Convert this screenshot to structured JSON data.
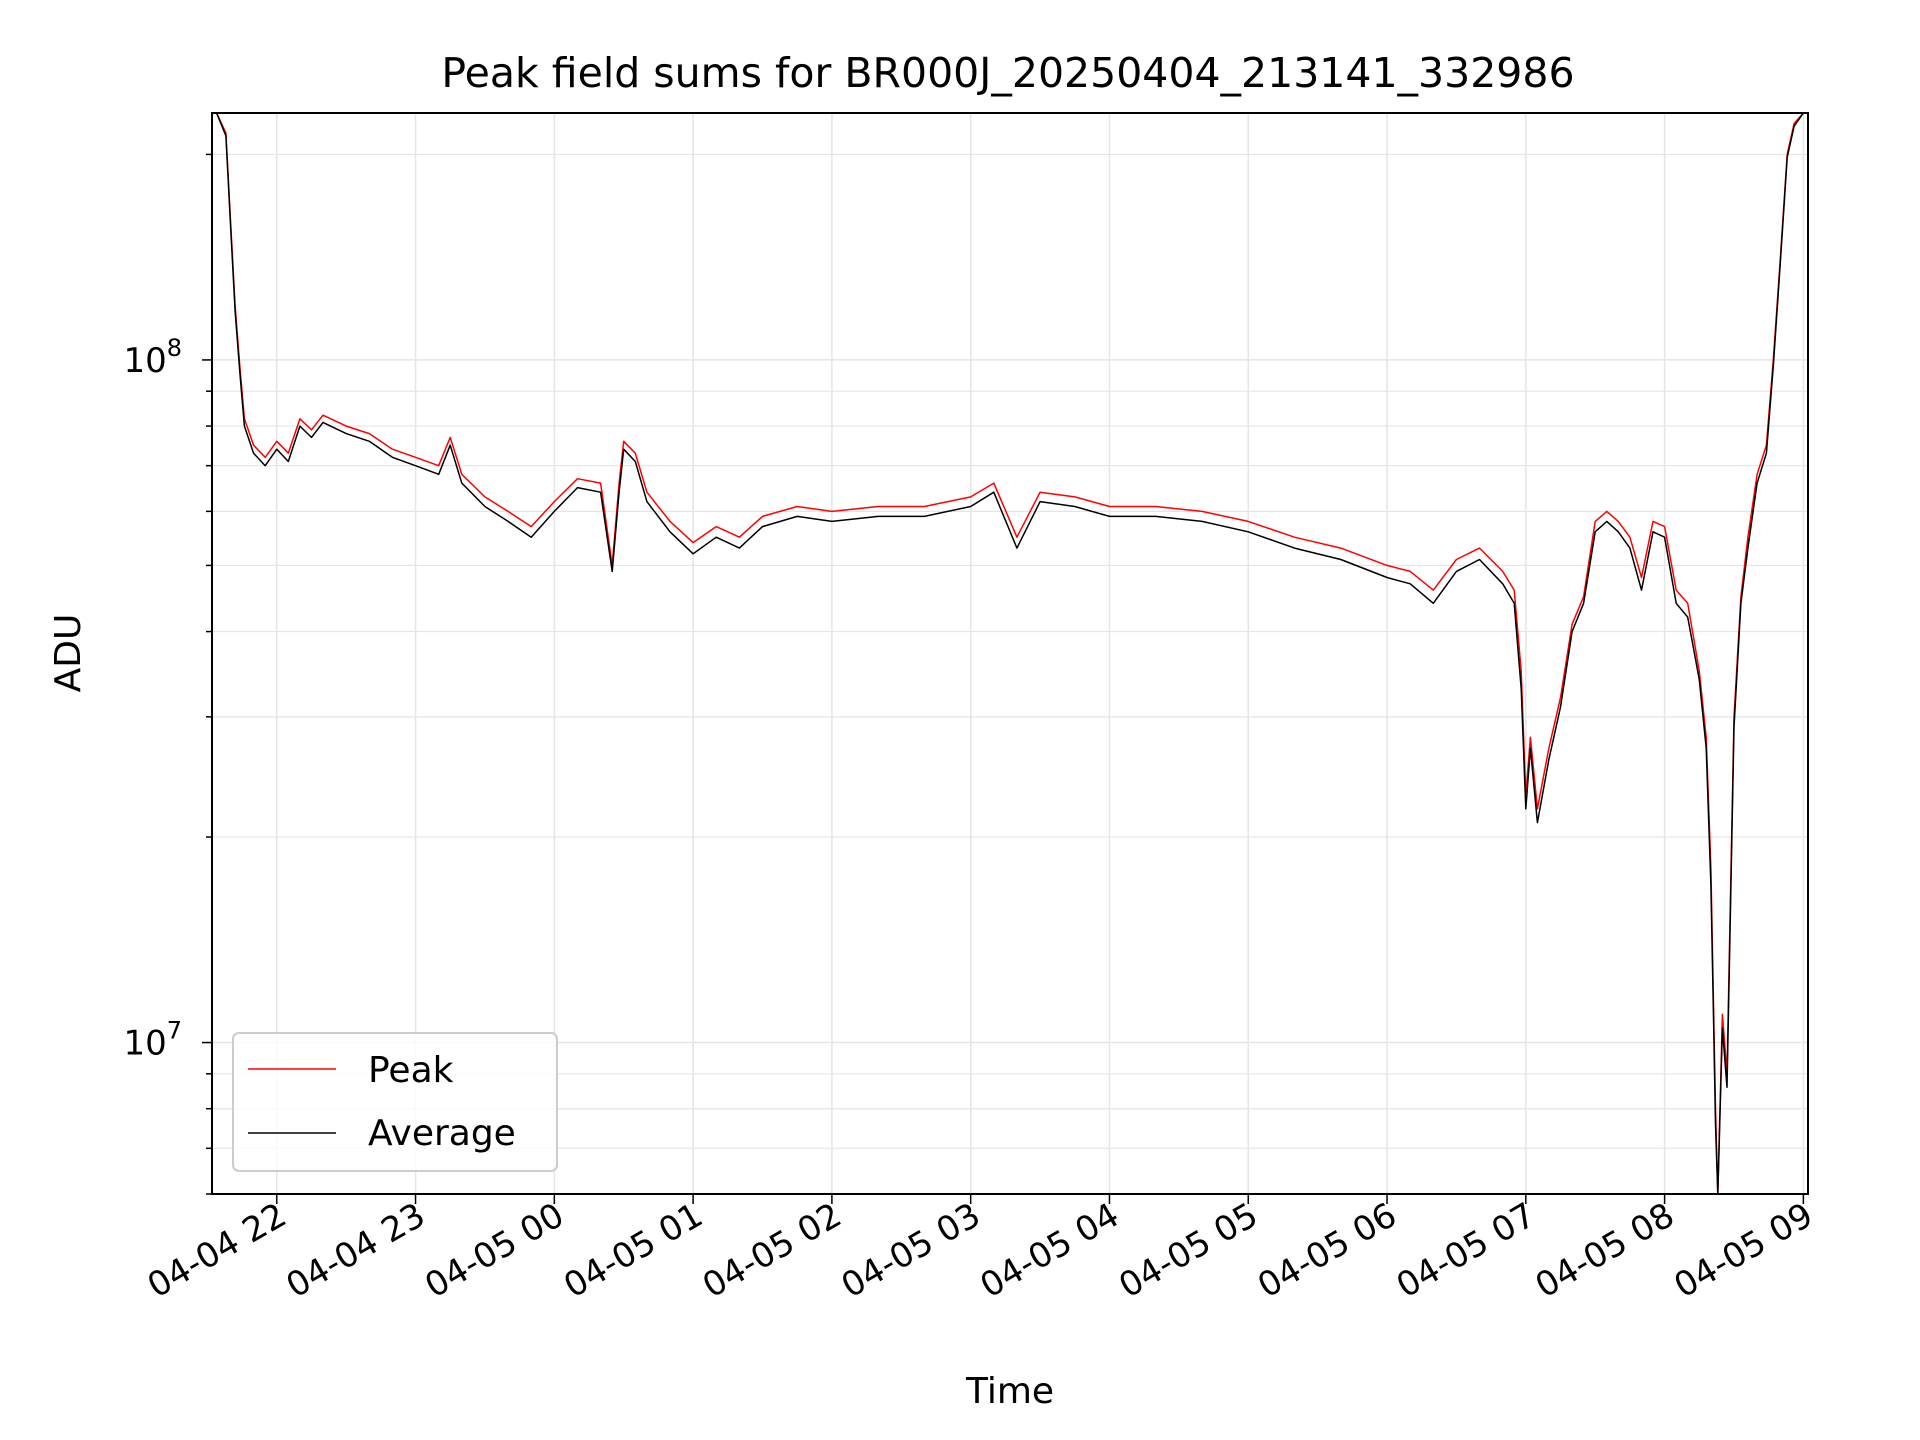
{
  "chart_data": {
    "type": "line",
    "title": "Peak field sums for BR000J_20250404_213141_332986",
    "xlabel": "Time",
    "ylabel": "ADU",
    "yscale": "log",
    "ylim": [
      6000000,
      230000000
    ],
    "xlim": [
      "2025-04-04 21:32",
      "2025-04-05 09:02"
    ],
    "grid": true,
    "legend_position": "lower-left",
    "x_ticks": [
      {
        "t": "2025-04-04 22:00",
        "label": "04-04 22"
      },
      {
        "t": "2025-04-04 23:00",
        "label": "04-04 23"
      },
      {
        "t": "2025-04-05 00:00",
        "label": "04-05 00"
      },
      {
        "t": "2025-04-05 01:00",
        "label": "04-05 01"
      },
      {
        "t": "2025-04-05 02:00",
        "label": "04-05 02"
      },
      {
        "t": "2025-04-05 03:00",
        "label": "04-05 03"
      },
      {
        "t": "2025-04-05 04:00",
        "label": "04-05 04"
      },
      {
        "t": "2025-04-05 05:00",
        "label": "04-05 05"
      },
      {
        "t": "2025-04-05 06:00",
        "label": "04-05 06"
      },
      {
        "t": "2025-04-05 07:00",
        "label": "04-05 07"
      },
      {
        "t": "2025-04-05 08:00",
        "label": "04-05 08"
      },
      {
        "t": "2025-04-05 09:00",
        "label": "04-05 09"
      }
    ],
    "y_ticks": [
      {
        "value": 10000000,
        "base": "10",
        "exp": "7"
      },
      {
        "value": 100000000,
        "base": "10",
        "exp": "8"
      }
    ],
    "series": [
      {
        "name": "Peak",
        "color": "#ff0000",
        "points": [
          [
            "2025-04-04 21:34",
            230000000
          ],
          [
            "2025-04-04 21:38",
            215000000
          ],
          [
            "2025-04-04 21:40",
            160000000
          ],
          [
            "2025-04-04 21:42",
            120000000
          ],
          [
            "2025-04-04 21:44",
            98000000
          ],
          [
            "2025-04-04 21:46",
            82000000
          ],
          [
            "2025-04-04 21:50",
            75000000
          ],
          [
            "2025-04-04 21:55",
            72000000
          ],
          [
            "2025-04-04 22:00",
            76000000
          ],
          [
            "2025-04-04 22:05",
            73000000
          ],
          [
            "2025-04-04 22:10",
            82000000
          ],
          [
            "2025-04-04 22:15",
            79000000
          ],
          [
            "2025-04-04 22:20",
            83000000
          ],
          [
            "2025-04-04 22:30",
            80000000
          ],
          [
            "2025-04-04 22:40",
            78000000
          ],
          [
            "2025-04-04 22:50",
            74000000
          ],
          [
            "2025-04-04 23:00",
            72000000
          ],
          [
            "2025-04-04 23:10",
            70000000
          ],
          [
            "2025-04-04 23:15",
            77000000
          ],
          [
            "2025-04-04 23:20",
            68000000
          ],
          [
            "2025-04-04 23:30",
            63000000
          ],
          [
            "2025-04-04 23:40",
            60000000
          ],
          [
            "2025-04-04 23:50",
            57000000
          ],
          [
            "2025-04-05 00:00",
            62000000
          ],
          [
            "2025-04-05 00:10",
            67000000
          ],
          [
            "2025-04-05 00:20",
            66000000
          ],
          [
            "2025-04-05 00:25",
            50000000
          ],
          [
            "2025-04-05 00:28",
            66000000
          ],
          [
            "2025-04-05 00:30",
            76000000
          ],
          [
            "2025-04-05 00:35",
            73000000
          ],
          [
            "2025-04-05 00:40",
            64000000
          ],
          [
            "2025-04-05 00:50",
            58000000
          ],
          [
            "2025-04-05 01:00",
            54000000
          ],
          [
            "2025-04-05 01:10",
            57000000
          ],
          [
            "2025-04-05 01:20",
            55000000
          ],
          [
            "2025-04-05 01:30",
            59000000
          ],
          [
            "2025-04-05 01:45",
            61000000
          ],
          [
            "2025-04-05 02:00",
            60000000
          ],
          [
            "2025-04-05 02:20",
            61000000
          ],
          [
            "2025-04-05 02:40",
            61000000
          ],
          [
            "2025-04-05 03:00",
            63000000
          ],
          [
            "2025-04-05 03:10",
            66000000
          ],
          [
            "2025-04-05 03:20",
            55000000
          ],
          [
            "2025-04-05 03:30",
            64000000
          ],
          [
            "2025-04-05 03:45",
            63000000
          ],
          [
            "2025-04-05 04:00",
            61000000
          ],
          [
            "2025-04-05 04:20",
            61000000
          ],
          [
            "2025-04-05 04:40",
            60000000
          ],
          [
            "2025-04-05 05:00",
            58000000
          ],
          [
            "2025-04-05 05:20",
            55000000
          ],
          [
            "2025-04-05 05:40",
            53000000
          ],
          [
            "2025-04-05 06:00",
            50000000
          ],
          [
            "2025-04-05 06:10",
            49000000
          ],
          [
            "2025-04-05 06:20",
            46000000
          ],
          [
            "2025-04-05 06:30",
            51000000
          ],
          [
            "2025-04-05 06:40",
            53000000
          ],
          [
            "2025-04-05 06:50",
            49000000
          ],
          [
            "2025-04-05 06:55",
            46000000
          ],
          [
            "2025-04-05 06:58",
            35000000
          ],
          [
            "2025-04-05 07:00",
            23000000
          ],
          [
            "2025-04-05 07:02",
            28000000
          ],
          [
            "2025-04-05 07:05",
            22000000
          ],
          [
            "2025-04-05 07:10",
            27000000
          ],
          [
            "2025-04-05 07:15",
            32000000
          ],
          [
            "2025-04-05 07:20",
            41000000
          ],
          [
            "2025-04-05 07:25",
            45000000
          ],
          [
            "2025-04-05 07:30",
            58000000
          ],
          [
            "2025-04-05 07:35",
            60000000
          ],
          [
            "2025-04-05 07:40",
            58000000
          ],
          [
            "2025-04-05 07:45",
            55000000
          ],
          [
            "2025-04-05 07:50",
            48000000
          ],
          [
            "2025-04-05 07:55",
            58000000
          ],
          [
            "2025-04-05 08:00",
            57000000
          ],
          [
            "2025-04-05 08:05",
            46000000
          ],
          [
            "2025-04-05 08:10",
            44000000
          ],
          [
            "2025-04-05 08:15",
            35000000
          ],
          [
            "2025-04-05 08:18",
            28000000
          ],
          [
            "2025-04-05 08:20",
            18000000
          ],
          [
            "2025-04-05 08:21",
            12000000
          ],
          [
            "2025-04-05 08:22",
            8000000
          ],
          [
            "2025-04-05 08:23",
            6000000
          ],
          [
            "2025-04-05 08:25",
            11000000
          ],
          [
            "2025-04-05 08:27",
            9000000
          ],
          [
            "2025-04-05 08:30",
            30000000
          ],
          [
            "2025-04-05 08:33",
            45000000
          ],
          [
            "2025-04-05 08:36",
            55000000
          ],
          [
            "2025-04-05 08:40",
            68000000
          ],
          [
            "2025-04-05 08:44",
            75000000
          ],
          [
            "2025-04-05 08:47",
            100000000
          ],
          [
            "2025-04-05 08:50",
            140000000
          ],
          [
            "2025-04-05 08:53",
            200000000
          ],
          [
            "2025-04-05 08:56",
            222000000
          ],
          [
            "2025-04-05 09:00",
            230000000
          ]
        ]
      },
      {
        "name": "Average",
        "color": "#000000",
        "points": [
          [
            "2025-04-04 21:34",
            230000000
          ],
          [
            "2025-04-04 21:38",
            213000000
          ],
          [
            "2025-04-04 21:40",
            158000000
          ],
          [
            "2025-04-04 21:42",
            118000000
          ],
          [
            "2025-04-04 21:44",
            96000000
          ],
          [
            "2025-04-04 21:46",
            80000000
          ],
          [
            "2025-04-04 21:50",
            73000000
          ],
          [
            "2025-04-04 21:55",
            70000000
          ],
          [
            "2025-04-04 22:00",
            74000000
          ],
          [
            "2025-04-04 22:05",
            71000000
          ],
          [
            "2025-04-04 22:10",
            80000000
          ],
          [
            "2025-04-04 22:15",
            77000000
          ],
          [
            "2025-04-04 22:20",
            81000000
          ],
          [
            "2025-04-04 22:30",
            78000000
          ],
          [
            "2025-04-04 22:40",
            76000000
          ],
          [
            "2025-04-04 22:50",
            72000000
          ],
          [
            "2025-04-04 23:00",
            70000000
          ],
          [
            "2025-04-04 23:10",
            68000000
          ],
          [
            "2025-04-04 23:15",
            75000000
          ],
          [
            "2025-04-04 23:20",
            66000000
          ],
          [
            "2025-04-04 23:30",
            61000000
          ],
          [
            "2025-04-04 23:40",
            58000000
          ],
          [
            "2025-04-04 23:50",
            55000000
          ],
          [
            "2025-04-05 00:00",
            60000000
          ],
          [
            "2025-04-05 00:10",
            65000000
          ],
          [
            "2025-04-05 00:20",
            64000000
          ],
          [
            "2025-04-05 00:25",
            49000000
          ],
          [
            "2025-04-05 00:28",
            64000000
          ],
          [
            "2025-04-05 00:30",
            74000000
          ],
          [
            "2025-04-05 00:35",
            71000000
          ],
          [
            "2025-04-05 00:40",
            62000000
          ],
          [
            "2025-04-05 00:50",
            56000000
          ],
          [
            "2025-04-05 01:00",
            52000000
          ],
          [
            "2025-04-05 01:10",
            55000000
          ],
          [
            "2025-04-05 01:20",
            53000000
          ],
          [
            "2025-04-05 01:30",
            57000000
          ],
          [
            "2025-04-05 01:45",
            59000000
          ],
          [
            "2025-04-05 02:00",
            58000000
          ],
          [
            "2025-04-05 02:20",
            59000000
          ],
          [
            "2025-04-05 02:40",
            59000000
          ],
          [
            "2025-04-05 03:00",
            61000000
          ],
          [
            "2025-04-05 03:10",
            64000000
          ],
          [
            "2025-04-05 03:20",
            53000000
          ],
          [
            "2025-04-05 03:30",
            62000000
          ],
          [
            "2025-04-05 03:45",
            61000000
          ],
          [
            "2025-04-05 04:00",
            59000000
          ],
          [
            "2025-04-05 04:20",
            59000000
          ],
          [
            "2025-04-05 04:40",
            58000000
          ],
          [
            "2025-04-05 05:00",
            56000000
          ],
          [
            "2025-04-05 05:20",
            53000000
          ],
          [
            "2025-04-05 05:40",
            51000000
          ],
          [
            "2025-04-05 06:00",
            48000000
          ],
          [
            "2025-04-05 06:10",
            47000000
          ],
          [
            "2025-04-05 06:20",
            44000000
          ],
          [
            "2025-04-05 06:30",
            49000000
          ],
          [
            "2025-04-05 06:40",
            51000000
          ],
          [
            "2025-04-05 06:50",
            47000000
          ],
          [
            "2025-04-05 06:55",
            44000000
          ],
          [
            "2025-04-05 06:58",
            33000000
          ],
          [
            "2025-04-05 07:00",
            22000000
          ],
          [
            "2025-04-05 07:02",
            27000000
          ],
          [
            "2025-04-05 07:05",
            21000000
          ],
          [
            "2025-04-05 07:10",
            26000000
          ],
          [
            "2025-04-05 07:15",
            31000000
          ],
          [
            "2025-04-05 07:20",
            40000000
          ],
          [
            "2025-04-05 07:25",
            44000000
          ],
          [
            "2025-04-05 07:30",
            56000000
          ],
          [
            "2025-04-05 07:35",
            58000000
          ],
          [
            "2025-04-05 07:40",
            56000000
          ],
          [
            "2025-04-05 07:45",
            53000000
          ],
          [
            "2025-04-05 07:50",
            46000000
          ],
          [
            "2025-04-05 07:55",
            56000000
          ],
          [
            "2025-04-05 08:00",
            55000000
          ],
          [
            "2025-04-05 08:05",
            44000000
          ],
          [
            "2025-04-05 08:10",
            42000000
          ],
          [
            "2025-04-05 08:15",
            34000000
          ],
          [
            "2025-04-05 08:18",
            27000000
          ],
          [
            "2025-04-05 08:20",
            17000000
          ],
          [
            "2025-04-05 08:21",
            11500000
          ],
          [
            "2025-04-05 08:22",
            7600000
          ],
          [
            "2025-04-05 08:23",
            6000000
          ],
          [
            "2025-04-05 08:25",
            10500000
          ],
          [
            "2025-04-05 08:27",
            8600000
          ],
          [
            "2025-04-05 08:30",
            29000000
          ],
          [
            "2025-04-05 08:33",
            44000000
          ],
          [
            "2025-04-05 08:36",
            53000000
          ],
          [
            "2025-04-05 08:40",
            66000000
          ],
          [
            "2025-04-05 08:44",
            73000000
          ],
          [
            "2025-04-05 08:47",
            98000000
          ],
          [
            "2025-04-05 08:50",
            138000000
          ],
          [
            "2025-04-05 08:53",
            198000000
          ],
          [
            "2025-04-05 08:56",
            220000000
          ],
          [
            "2025-04-05 09:00",
            230000000
          ]
        ]
      }
    ]
  }
}
